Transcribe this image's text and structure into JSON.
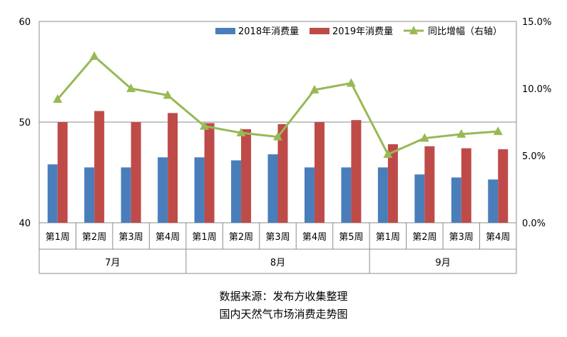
{
  "chart_data": {
    "type": "bar",
    "categories": [
      "第1周",
      "第2周",
      "第3周",
      "第4周",
      "第1周",
      "第2周",
      "第3周",
      "第4周",
      "第5周",
      "第1周",
      "第2周",
      "第3周",
      "第4周"
    ],
    "groups": [
      {
        "label": "7月",
        "count": 4
      },
      {
        "label": "8月",
        "count": 5
      },
      {
        "label": "9月",
        "count": 4
      }
    ],
    "series": [
      {
        "name": "2018年消费量",
        "type": "bar",
        "axis": "left",
        "color": "#4a7ebb",
        "values": [
          45.8,
          45.5,
          45.5,
          46.5,
          46.5,
          46.2,
          46.8,
          45.5,
          45.5,
          45.5,
          44.8,
          44.5,
          44.3
        ]
      },
      {
        "name": "2019年消费量",
        "type": "bar",
        "axis": "left",
        "color": "#be4b48",
        "values": [
          50.0,
          51.1,
          50.0,
          50.9,
          49.9,
          49.3,
          49.8,
          50.0,
          50.2,
          47.8,
          47.6,
          47.4,
          47.3
        ]
      },
      {
        "name": "同比增幅（右轴）",
        "type": "line",
        "axis": "right",
        "color": "#98b954",
        "values": [
          9.2,
          12.4,
          10.0,
          9.5,
          7.2,
          6.7,
          6.4,
          9.9,
          10.4,
          5.1,
          6.3,
          6.6,
          6.8
        ]
      }
    ],
    "ylim": [
      40,
      60
    ],
    "yticks": [
      "40",
      "50",
      "60"
    ],
    "y2lim": [
      0,
      15
    ],
    "y2ticks": [
      "0.0%",
      "5.0%",
      "10.0%",
      "15.0%"
    ],
    "grid": true,
    "legend": "top-right"
  },
  "captions": {
    "source": "数据来源：发布方收集整理",
    "title": "国内天然气市场消费走势图"
  }
}
